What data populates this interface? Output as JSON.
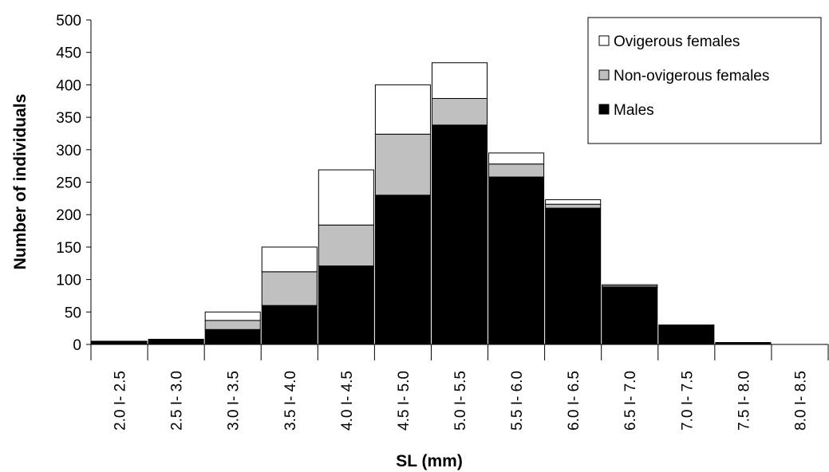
{
  "chart_data": {
    "type": "stacked_bar",
    "x_label": "SL (mm)",
    "y_label": "Number of individuals",
    "categories": [
      "2.0 I- 2.5",
      "2.5 I- 3.0",
      "3.0 I- 3.5",
      "3.5 I- 4.0",
      "4.0 I- 4.5",
      "4.5 I- 5.0",
      "5.0 I- 5.5",
      "5.5 I- 6.0",
      "6.0 I- 6.5",
      "6.5 I- 7.0",
      "7.0 I- 7.5",
      "7.5 I- 8.0",
      "8.0 I- 8.5"
    ],
    "series": [
      {
        "name": "Males",
        "color": "#000000",
        "values": [
          5,
          8,
          23,
          60,
          121,
          230,
          338,
          258,
          210,
          88,
          30,
          3,
          0
        ]
      },
      {
        "name": "Non-ovigerous females",
        "color": "#c0c0c0",
        "values": [
          0,
          0,
          14,
          52,
          63,
          94,
          41,
          20,
          6,
          2,
          0,
          0,
          0
        ]
      },
      {
        "name": "Ovigerous females",
        "color": "#ffffff",
        "values": [
          0,
          0,
          13,
          38,
          85,
          76,
          55,
          17,
          7,
          2,
          0,
          0,
          0
        ]
      }
    ],
    "ylim": [
      0,
      500
    ],
    "yticks": [
      0,
      50,
      100,
      150,
      200,
      250,
      300,
      350,
      400,
      450,
      500
    ],
    "legend": "top-right"
  }
}
